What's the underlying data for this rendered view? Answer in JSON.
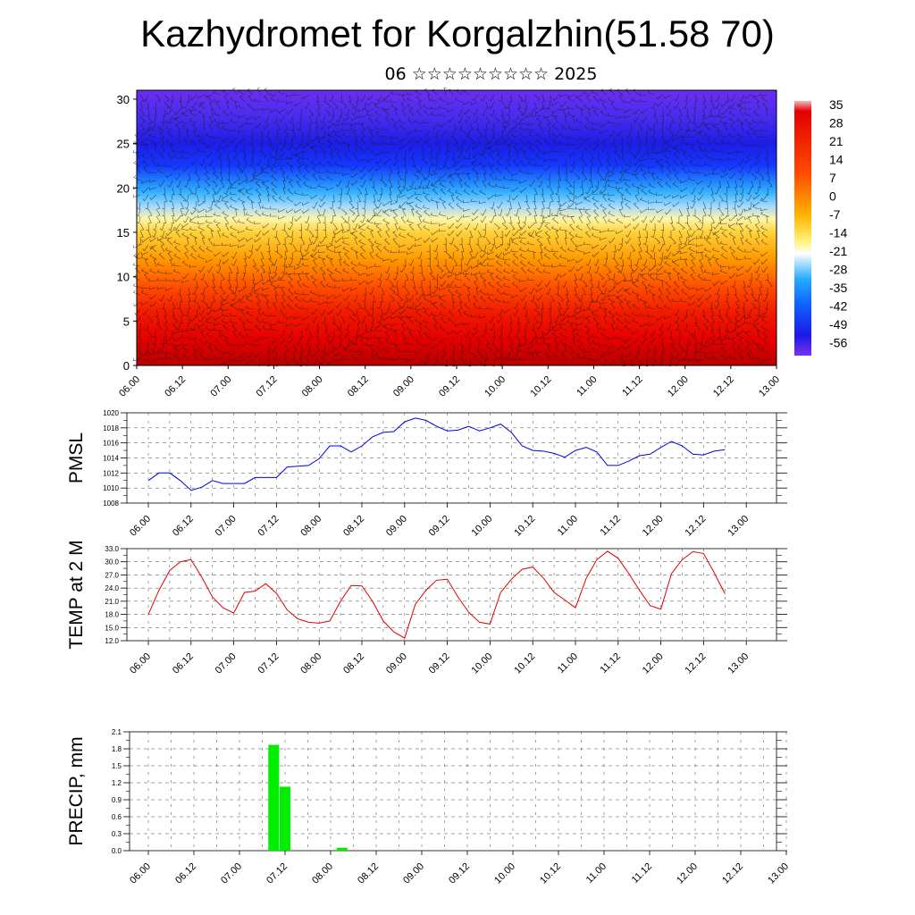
{
  "header": {
    "title": "Kazhydromet for Korgalzhin(51.58 70)",
    "subtitle": "06 ☆☆☆☆☆☆☆☆☆ 2025"
  },
  "x_tick_labels": [
    "06.00",
    "06.12",
    "07.00",
    "07.12",
    "08.00",
    "08.12",
    "09.00",
    "09.12",
    "10.00",
    "10.12",
    "11.00",
    "11.12",
    "12.00",
    "12.12",
    "13.00"
  ],
  "colors": {
    "pmsl_line": "#0000e0",
    "temp_line": "#e00000",
    "precip_bar": "#00ee00"
  },
  "chart_data": [
    {
      "type": "heatmap",
      "name": "vertical-section",
      "ylim": [
        0,
        31
      ],
      "y_ticks": [
        0,
        5,
        10,
        15,
        20,
        25,
        30
      ],
      "colorbar_labels": [
        "35",
        "28",
        "21",
        "14",
        "7",
        "0",
        "-7",
        "-14",
        "-21",
        "-28",
        "-35",
        "-42",
        "-49",
        "-56"
      ],
      "colorbar_values": [
        35,
        28,
        21,
        14,
        7,
        0,
        -7,
        -14,
        -21,
        -28,
        -35,
        -42,
        -49,
        -56
      ],
      "overlay": "wind barbs"
    },
    {
      "type": "line",
      "ylabel": "PMSL",
      "ylim": [
        1008,
        1020
      ],
      "y_ticks": [
        "1008",
        "1010",
        "1012",
        "1014",
        "1016",
        "1018",
        "1020"
      ],
      "x_ticks": [
        0,
        12,
        24,
        36,
        48,
        60,
        72,
        84,
        96,
        108,
        120,
        132,
        144,
        156,
        168
      ],
      "series": [
        {
          "x": [
            0,
            3,
            6,
            9,
            12,
            15,
            18,
            21,
            24,
            27,
            30,
            33,
            36,
            39,
            42,
            45,
            48,
            51,
            54,
            57,
            60,
            63,
            66,
            69,
            72,
            75,
            78,
            81,
            84,
            87,
            90,
            93,
            96,
            99,
            102,
            105,
            108,
            111,
            114,
            117,
            120,
            123,
            126,
            129,
            132,
            135,
            138,
            141,
            144,
            147,
            150,
            153,
            156,
            159,
            162
          ],
          "values": [
            1011,
            1012,
            1012,
            1011,
            1009.7,
            1010.1,
            1011,
            1010.6,
            1010.6,
            1010.6,
            1011.4,
            1011.4,
            1011.4,
            1012.8,
            1012.9,
            1013,
            1013.9,
            1015.6,
            1015.6,
            1014.8,
            1015.6,
            1016.8,
            1017.4,
            1017.5,
            1018.8,
            1019.3,
            1019,
            1018.2,
            1017.6,
            1017.7,
            1018.2,
            1017.6,
            1018,
            1018.5,
            1017.4,
            1015.6,
            1015,
            1014.9,
            1014.6,
            1014.1,
            1015,
            1015.4,
            1014.8,
            1013,
            1013,
            1013.6,
            1014.3,
            1014.5,
            1015.4,
            1016.2,
            1015.6,
            1014.5,
            1014.4,
            1014.9,
            1015.1
          ]
        }
      ]
    },
    {
      "type": "line",
      "ylabel": "TEMP at 2 M",
      "ylim": [
        12,
        33
      ],
      "y_ticks": [
        "12.0",
        "15.0",
        "18.0",
        "21.0",
        "24.0",
        "27.0",
        "30.0",
        "33.0"
      ],
      "x_ticks": [
        0,
        12,
        24,
        36,
        48,
        60,
        72,
        84,
        96,
        108,
        120,
        132,
        144,
        156,
        168
      ],
      "series": [
        {
          "x": [
            0,
            3,
            6,
            9,
            12,
            15,
            18,
            21,
            24,
            27,
            30,
            33,
            36,
            39,
            42,
            45,
            48,
            51,
            54,
            57,
            60,
            63,
            66,
            69,
            72,
            75,
            78,
            81,
            84,
            87,
            90,
            93,
            96,
            99,
            102,
            105,
            108,
            111,
            114,
            117,
            120,
            123,
            126,
            129,
            132,
            135,
            138,
            141,
            144,
            147,
            150,
            153,
            156,
            159,
            162
          ],
          "values": [
            18,
            23.5,
            28,
            30,
            30.5,
            26.5,
            22,
            19.5,
            18.3,
            23,
            23.3,
            25,
            22.8,
            19,
            17,
            16.2,
            16,
            16.5,
            21,
            24.6,
            24.5,
            21,
            16.5,
            14,
            12.6,
            20.3,
            23.5,
            25.8,
            26,
            22,
            18.5,
            16.2,
            15.8,
            23,
            26,
            28.3,
            28.8,
            26.3,
            23,
            21.3,
            19.5,
            26.2,
            30.5,
            32.4,
            30.8,
            27.3,
            23.5,
            20,
            19.2,
            27.3,
            30.5,
            32.3,
            31.9,
            27.5,
            22.7
          ]
        }
      ]
    },
    {
      "type": "bar",
      "ylabel": "PRECIP, mm",
      "ylim": [
        0,
        2.1
      ],
      "y_ticks": [
        "0.0",
        "0.3",
        "0.6",
        "0.9",
        "1.2",
        "1.5",
        "1.8",
        "2.1"
      ],
      "x_ticks": [
        0,
        12,
        24,
        36,
        48,
        60,
        72,
        84,
        96,
        108,
        120,
        132,
        144,
        156,
        168
      ],
      "bars": [
        {
          "x": 33,
          "value": 1.87
        },
        {
          "x": 36,
          "value": 1.13
        },
        {
          "x": 51,
          "value": 0.05
        }
      ]
    }
  ]
}
